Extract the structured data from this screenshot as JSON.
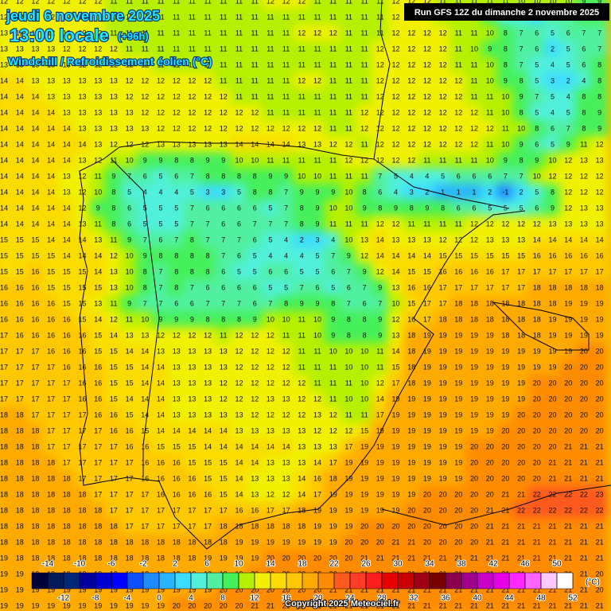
{
  "header": {
    "date": "jeudi 6 novembre 2025",
    "time": "13:00 locale",
    "lead": "(+96h)",
    "variable": "Windchill / Refroidissement éolien (°C)",
    "run": "Run GFS 12Z du dimanche 2 novembre 2025"
  },
  "grid": {
    "values": [
      [
        12,
        12,
        12,
        12,
        12,
        12,
        12,
        11,
        11,
        11,
        11,
        11,
        11,
        11,
        11,
        11,
        11,
        12,
        12,
        12,
        11,
        11,
        11,
        11,
        11,
        12,
        12,
        12,
        11,
        11,
        11,
        11,
        11,
        10,
        10,
        10,
        10,
        9,
        9
      ],
      [
        12,
        12,
        12,
        12,
        12,
        12,
        12,
        11,
        11,
        11,
        11,
        11,
        11,
        11,
        11,
        11,
        11,
        11,
        11,
        11,
        11,
        11,
        11,
        11,
        11,
        12,
        12,
        12,
        11,
        10,
        10,
        8,
        5,
        5,
        3,
        7,
        6,
        9,
        9
      ],
      [
        13,
        12,
        12,
        12,
        12,
        12,
        12,
        11,
        11,
        11,
        11,
        11,
        11,
        11,
        11,
        11,
        11,
        11,
        11,
        12,
        12,
        12,
        11,
        11,
        11,
        12,
        12,
        12,
        12,
        11,
        11,
        10,
        8,
        7,
        6,
        5,
        6,
        7,
        7
      ],
      [
        13,
        13,
        13,
        13,
        12,
        12,
        12,
        12,
        11,
        11,
        11,
        11,
        11,
        11,
        11,
        11,
        11,
        11,
        11,
        11,
        11,
        11,
        11,
        11,
        12,
        12,
        12,
        12,
        12,
        11,
        10,
        9,
        8,
        7,
        6,
        2,
        5,
        6,
        7
      ],
      [
        13,
        13,
        13,
        13,
        13,
        12,
        12,
        12,
        12,
        12,
        11,
        11,
        11,
        11,
        11,
        11,
        11,
        11,
        11,
        11,
        11,
        11,
        11,
        11,
        12,
        12,
        12,
        12,
        12,
        11,
        11,
        10,
        8,
        7,
        5,
        4,
        5,
        6,
        8
      ],
      [
        14,
        14,
        13,
        13,
        13,
        13,
        13,
        13,
        12,
        12,
        12,
        12,
        12,
        12,
        11,
        11,
        11,
        11,
        11,
        12,
        12,
        11,
        11,
        11,
        12,
        12,
        12,
        12,
        12,
        12,
        11,
        10,
        9,
        8,
        5,
        3,
        2,
        4,
        8
      ],
      [
        14,
        14,
        14,
        13,
        13,
        13,
        13,
        13,
        12,
        12,
        12,
        12,
        12,
        12,
        12,
        11,
        11,
        11,
        11,
        11,
        11,
        11,
        11,
        11,
        12,
        12,
        12,
        12,
        12,
        12,
        11,
        11,
        10,
        9,
        7,
        5,
        4,
        8,
        8
      ],
      [
        14,
        14,
        14,
        14,
        13,
        13,
        13,
        13,
        13,
        12,
        12,
        12,
        12,
        12,
        12,
        12,
        12,
        11,
        11,
        11,
        11,
        11,
        11,
        12,
        12,
        12,
        12,
        12,
        12,
        12,
        12,
        11,
        10,
        8,
        5,
        4,
        5,
        8,
        9
      ],
      [
        14,
        14,
        14,
        14,
        14,
        13,
        13,
        13,
        13,
        13,
        12,
        12,
        12,
        12,
        12,
        12,
        12,
        12,
        12,
        12,
        12,
        11,
        11,
        12,
        12,
        12,
        12,
        12,
        12,
        12,
        12,
        12,
        11,
        10,
        8,
        6,
        7,
        8,
        9
      ],
      [
        14,
        14,
        14,
        14,
        14,
        14,
        13,
        12,
        12,
        12,
        13,
        13,
        13,
        13,
        13,
        14,
        14,
        14,
        14,
        13,
        13,
        12,
        12,
        11,
        12,
        12,
        12,
        12,
        12,
        12,
        12,
        11,
        10,
        9,
        6,
        5,
        9,
        11,
        12
      ],
      [
        14,
        14,
        14,
        14,
        14,
        13,
        12,
        11,
        10,
        9,
        9,
        8,
        8,
        9,
        9,
        10,
        10,
        11,
        11,
        11,
        11,
        11,
        12,
        12,
        12,
        12,
        12,
        11,
        11,
        11,
        11,
        10,
        9,
        8,
        9,
        10,
        12,
        13,
        13
      ],
      [
        14,
        14,
        14,
        14,
        13,
        12,
        11,
        9,
        7,
        6,
        5,
        6,
        7,
        8,
        8,
        8,
        8,
        9,
        9,
        10,
        10,
        11,
        11,
        11,
        7,
        5,
        4,
        4,
        5,
        6,
        6,
        6,
        7,
        7,
        10,
        12,
        12,
        12,
        12
      ],
      [
        14,
        14,
        14,
        14,
        13,
        12,
        10,
        8,
        5,
        4,
        4,
        4,
        5,
        3,
        3,
        5,
        8,
        8,
        7,
        9,
        9,
        9,
        10,
        8,
        6,
        4,
        3,
        2,
        1,
        1,
        1,
        2,
        -1,
        2,
        5,
        8,
        12,
        12,
        12
      ],
      [
        14,
        14,
        14,
        14,
        14,
        12,
        9,
        8,
        6,
        5,
        5,
        5,
        7,
        6,
        6,
        6,
        6,
        5,
        7,
        8,
        9,
        10,
        10,
        9,
        8,
        9,
        8,
        9,
        8,
        6,
        6,
        5,
        5,
        5,
        6,
        9,
        12,
        13,
        13
      ],
      [
        14,
        14,
        14,
        14,
        14,
        13,
        11,
        8,
        6,
        5,
        5,
        5,
        7,
        7,
        6,
        6,
        7,
        7,
        7,
        8,
        9,
        11,
        11,
        11,
        12,
        12,
        11,
        11,
        11,
        11,
        12,
        12,
        12,
        12,
        12,
        13,
        13,
        13,
        13
      ],
      [
        15,
        15,
        15,
        14,
        14,
        14,
        13,
        11,
        9,
        7,
        6,
        7,
        8,
        7,
        7,
        7,
        6,
        5,
        4,
        2,
        3,
        4,
        10,
        13,
        14,
        13,
        13,
        13,
        12,
        12,
        12,
        13,
        13,
        13,
        14,
        14,
        14,
        14,
        14
      ],
      [
        15,
        15,
        15,
        15,
        14,
        14,
        14,
        12,
        10,
        9,
        8,
        8,
        8,
        8,
        7,
        6,
        5,
        4,
        4,
        4,
        5,
        7,
        9,
        12,
        14,
        14,
        14,
        14,
        15,
        15,
        15,
        15,
        15,
        15,
        16,
        16,
        16,
        16,
        16
      ],
      [
        15,
        15,
        16,
        15,
        15,
        15,
        14,
        13,
        10,
        8,
        7,
        8,
        8,
        8,
        6,
        5,
        5,
        6,
        6,
        5,
        5,
        6,
        7,
        9,
        12,
        14,
        15,
        15,
        16,
        16,
        16,
        16,
        17,
        17,
        17,
        17,
        17,
        17,
        17
      ],
      [
        16,
        16,
        16,
        15,
        15,
        15,
        15,
        13,
        10,
        8,
        7,
        8,
        7,
        6,
        6,
        6,
        6,
        5,
        5,
        7,
        6,
        5,
        6,
        7,
        9,
        13,
        16,
        16,
        17,
        17,
        17,
        17,
        17,
        17,
        18,
        18,
        18,
        18,
        18
      ],
      [
        16,
        16,
        16,
        16,
        15,
        15,
        13,
        11,
        9,
        7,
        7,
        6,
        6,
        7,
        7,
        7,
        6,
        7,
        8,
        9,
        9,
        8,
        7,
        6,
        7,
        10,
        15,
        17,
        17,
        18,
        18,
        18,
        18,
        18,
        18,
        18,
        19,
        19,
        19
      ],
      [
        16,
        16,
        16,
        16,
        16,
        15,
        14,
        12,
        11,
        10,
        9,
        9,
        9,
        8,
        8,
        8,
        9,
        10,
        10,
        11,
        10,
        9,
        8,
        8,
        9,
        12,
        16,
        17,
        18,
        18,
        18,
        18,
        18,
        18,
        18,
        19,
        19,
        19,
        19
      ],
      [
        17,
        16,
        16,
        16,
        16,
        16,
        15,
        14,
        13,
        13,
        12,
        12,
        12,
        12,
        11,
        12,
        12,
        12,
        11,
        11,
        10,
        9,
        8,
        8,
        9,
        13,
        18,
        19,
        19,
        19,
        19,
        19,
        18,
        18,
        18,
        19,
        19,
        19,
        19
      ],
      [
        17,
        17,
        17,
        16,
        16,
        16,
        15,
        15,
        14,
        14,
        13,
        13,
        13,
        13,
        13,
        12,
        12,
        12,
        12,
        11,
        11,
        10,
        10,
        10,
        11,
        14,
        18,
        19,
        19,
        19,
        19,
        19,
        19,
        19,
        19,
        19,
        19,
        20,
        20
      ],
      [
        17,
        17,
        17,
        17,
        16,
        16,
        16,
        15,
        15,
        14,
        14,
        13,
        13,
        13,
        13,
        12,
        12,
        12,
        12,
        11,
        11,
        11,
        10,
        10,
        11,
        15,
        18,
        19,
        19,
        19,
        19,
        19,
        19,
        19,
        19,
        19,
        20,
        20,
        20
      ],
      [
        17,
        17,
        17,
        17,
        17,
        16,
        16,
        15,
        15,
        14,
        14,
        13,
        13,
        13,
        12,
        12,
        12,
        12,
        12,
        12,
        11,
        11,
        11,
        10,
        12,
        17,
        18,
        19,
        19,
        19,
        19,
        19,
        19,
        19,
        20,
        20,
        20,
        20,
        20
      ],
      [
        17,
        17,
        17,
        17,
        17,
        16,
        16,
        15,
        14,
        14,
        14,
        13,
        13,
        13,
        12,
        12,
        12,
        13,
        13,
        12,
        12,
        11,
        10,
        10,
        14,
        19,
        19,
        19,
        19,
        19,
        19,
        19,
        19,
        19,
        20,
        20,
        20,
        20,
        20
      ],
      [
        18,
        18,
        17,
        17,
        17,
        17,
        16,
        16,
        15,
        14,
        14,
        13,
        13,
        13,
        13,
        13,
        12,
        12,
        12,
        12,
        13,
        12,
        11,
        11,
        17,
        19,
        19,
        19,
        19,
        19,
        19,
        19,
        19,
        20,
        20,
        20,
        20,
        20,
        20
      ],
      [
        18,
        18,
        18,
        17,
        17,
        17,
        17,
        16,
        16,
        15,
        14,
        14,
        14,
        14,
        14,
        13,
        13,
        13,
        13,
        13,
        12,
        12,
        12,
        15,
        19,
        19,
        19,
        19,
        19,
        19,
        19,
        19,
        20,
        20,
        20,
        20,
        20,
        20,
        20
      ],
      [
        18,
        18,
        18,
        17,
        17,
        17,
        17,
        17,
        16,
        16,
        15,
        15,
        15,
        14,
        14,
        14,
        14,
        14,
        14,
        13,
        13,
        13,
        17,
        19,
        19,
        19,
        19,
        19,
        19,
        19,
        20,
        20,
        20,
        20,
        20,
        20,
        21,
        21,
        21
      ],
      [
        18,
        18,
        18,
        18,
        17,
        17,
        17,
        17,
        17,
        16,
        16,
        16,
        15,
        15,
        15,
        14,
        14,
        13,
        13,
        13,
        14,
        17,
        19,
        19,
        19,
        19,
        19,
        19,
        19,
        19,
        20,
        20,
        20,
        20,
        20,
        21,
        21,
        21,
        21
      ],
      [
        18,
        18,
        18,
        18,
        18,
        17,
        17,
        17,
        17,
        16,
        16,
        16,
        16,
        15,
        15,
        14,
        13,
        13,
        13,
        14,
        16,
        18,
        19,
        19,
        19,
        19,
        19,
        19,
        19,
        19,
        20,
        20,
        20,
        20,
        20,
        21,
        21,
        21,
        21
      ],
      [
        18,
        18,
        18,
        18,
        18,
        18,
        17,
        17,
        17,
        17,
        16,
        16,
        16,
        16,
        15,
        14,
        13,
        12,
        12,
        14,
        17,
        19,
        19,
        19,
        19,
        19,
        19,
        20,
        20,
        20,
        20,
        20,
        21,
        21,
        22,
        22,
        22,
        22,
        23
      ],
      [
        18,
        18,
        18,
        18,
        18,
        18,
        18,
        17,
        17,
        17,
        17,
        17,
        17,
        17,
        17,
        16,
        16,
        17,
        17,
        18,
        19,
        19,
        19,
        19,
        19,
        19,
        20,
        20,
        20,
        20,
        20,
        21,
        21,
        22,
        22,
        22,
        22,
        22,
        22
      ],
      [
        18,
        18,
        18,
        18,
        18,
        18,
        18,
        18,
        17,
        17,
        17,
        17,
        17,
        17,
        18,
        18,
        18,
        18,
        18,
        18,
        19,
        19,
        19,
        20,
        20,
        20,
        20,
        20,
        20,
        20,
        20,
        21,
        21,
        21,
        21,
        21,
        21,
        21,
        21
      ],
      [
        18,
        18,
        18,
        18,
        18,
        18,
        18,
        18,
        18,
        18,
        18,
        18,
        18,
        18,
        18,
        19,
        19,
        19,
        19,
        19,
        19,
        19,
        20,
        20,
        20,
        21,
        21,
        20,
        20,
        20,
        20,
        21,
        21,
        21,
        21,
        21,
        21,
        21,
        21
      ],
      [
        19,
        18,
        18,
        18,
        18,
        18,
        18,
        18,
        18,
        18,
        18,
        18,
        18,
        19,
        19,
        19,
        19,
        20,
        20,
        20,
        20,
        20,
        20,
        21,
        21,
        21,
        21,
        21,
        21,
        21,
        21,
        21,
        21,
        21,
        21,
        21,
        21,
        21,
        21
      ],
      [
        19,
        19,
        19,
        19,
        19,
        19,
        19,
        19,
        19,
        19,
        19,
        19,
        19,
        19,
        19,
        19,
        20,
        20,
        20,
        20,
        20,
        20,
        21,
        21,
        21,
        21,
        21,
        21,
        21,
        21,
        21,
        21,
        21,
        21,
        21,
        21,
        21,
        21,
        20
      ],
      [
        19,
        19,
        19,
        19,
        19,
        19,
        19,
        19,
        19,
        19,
        19,
        19,
        19,
        19,
        20,
        20,
        20,
        20,
        20,
        20,
        20,
        21,
        21,
        21,
        21,
        21,
        21,
        21,
        21,
        21,
        21,
        21,
        21,
        21,
        21,
        21,
        21,
        21,
        20
      ],
      [
        19,
        19,
        19,
        19,
        19,
        19,
        19,
        19,
        19,
        19,
        19,
        20,
        20,
        20,
        20,
        20,
        21,
        21,
        21,
        21,
        21,
        21,
        21,
        21,
        21,
        21,
        21,
        21,
        21,
        21,
        21,
        21,
        21,
        21,
        21,
        21,
        21,
        21,
        21
      ]
    ]
  },
  "legend": {
    "unit": "(°C)",
    "ticks": [
      -14,
      -12,
      -10,
      -8,
      -6,
      -4,
      -2,
      0,
      2,
      4,
      6,
      8,
      10,
      12,
      14,
      16,
      18,
      20,
      22,
      24,
      26,
      28,
      30,
      32,
      34,
      36,
      38,
      40,
      42,
      44,
      46,
      48,
      50,
      52
    ],
    "colors": [
      "#00003c",
      "#001a5a",
      "#002878",
      "#0000a0",
      "#0000d2",
      "#0000ff",
      "#0a50ff",
      "#1e8cff",
      "#28b4ff",
      "#3cdcff",
      "#50f0dc",
      "#50f0a0",
      "#46f05a",
      "#b4f000",
      "#f0f000",
      "#fadc00",
      "#ffc800",
      "#ffaa00",
      "#ff8c00",
      "#ff5a1e",
      "#ff3c28",
      "#ff1e1e",
      "#e60000",
      "#c80000",
      "#a00014",
      "#780000",
      "#8c0050",
      "#a0008c",
      "#c800c8",
      "#e600e6",
      "#ff28ff",
      "#ff64ff",
      "#ffc8ff",
      "#ffffff"
    ]
  },
  "footer": {
    "copyright": "Copyright 2025 Meteociel.fr"
  }
}
